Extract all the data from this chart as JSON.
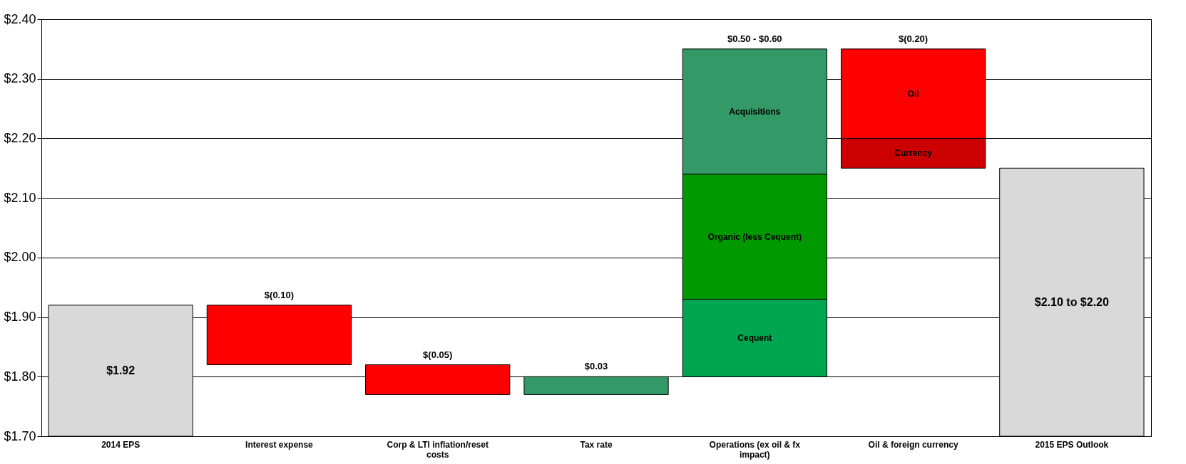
{
  "chart_data": {
    "type": "bar",
    "grid": "y",
    "ylim": [
      1.7,
      2.4
    ],
    "yticks": [
      {
        "value": 1.7,
        "label": "$1.70"
      },
      {
        "value": 1.8,
        "label": "$1.80"
      },
      {
        "value": 1.9,
        "label": "$1.90"
      },
      {
        "value": 2.0,
        "label": "$2.00"
      },
      {
        "value": 2.1,
        "label": "$2.10"
      },
      {
        "value": 2.2,
        "label": "$2.20"
      },
      {
        "value": 2.3,
        "label": "$2.30"
      },
      {
        "value": 2.4,
        "label": "$2.40"
      }
    ],
    "categories": [
      "2014 EPS",
      "Interest expense",
      "Corp & LTI inflation/reset costs",
      "Tax rate",
      "Operations (ex oil & fx impact)",
      "Oil & foreign currency",
      "2015 EPS Outlook"
    ],
    "series": [
      {
        "color": "#d9d9d9",
        "base": [
          1.7,
          null,
          null,
          null,
          null,
          null,
          1.7
        ],
        "values": [
          0.22,
          null,
          null,
          null,
          null,
          null,
          0.45
        ]
      },
      {
        "color": "#ff0000",
        "base": [
          null,
          1.92,
          1.82,
          null,
          null,
          null,
          null
        ],
        "values": [
          null,
          -0.1,
          -0.05,
          null,
          null,
          null,
          null
        ],
        "value_labels": [
          null,
          "$(0.10)",
          "$(0.05)",
          null,
          null,
          null,
          null
        ]
      },
      {
        "color": "#339966",
        "base": [
          null,
          null,
          null,
          1.77,
          null,
          null,
          null
        ],
        "values": [
          null,
          null,
          null,
          0.03,
          null,
          null,
          null
        ],
        "value_labels": [
          null,
          null,
          null,
          "$0.03",
          null,
          null,
          null
        ]
      },
      {
        "name": "Cequent",
        "color": "#00a64f",
        "base": [
          null,
          null,
          null,
          null,
          1.8,
          null,
          null
        ],
        "values": [
          null,
          null,
          null,
          null,
          0.13,
          null,
          null
        ]
      },
      {
        "name": "Organic (less Cequent)",
        "color": "#009900",
        "base": [
          null,
          null,
          null,
          null,
          1.93,
          null,
          null
        ],
        "values": [
          null,
          null,
          null,
          null,
          0.21,
          null,
          null
        ]
      },
      {
        "name": "Acquisitions",
        "color": "#339966",
        "base": [
          null,
          null,
          null,
          null,
          2.14,
          null,
          null
        ],
        "values": [
          null,
          null,
          null,
          null,
          0.21,
          null,
          null
        ]
      },
      {
        "name": "Currency",
        "color": "#cc0000",
        "base": [
          null,
          null,
          null,
          null,
          null,
          2.15,
          null
        ],
        "values": [
          null,
          null,
          null,
          null,
          null,
          0.05,
          null
        ]
      },
      {
        "name": "Oil",
        "color": "#ff0000",
        "base": [
          null,
          null,
          null,
          null,
          null,
          2.2,
          null
        ],
        "values": [
          null,
          null,
          null,
          null,
          null,
          0.15,
          null
        ]
      }
    ],
    "annotations": [
      "$1.92",
      "$2.10 to $2.20",
      {
        "text": "$0.50 - $0.60",
        "x": "Operations (ex oil & fx impact)",
        "y": 2.35
      },
      {
        "text": "$(0.20)",
        "x": "Oil & foreign currency",
        "y": 2.35
      }
    ]
  }
}
